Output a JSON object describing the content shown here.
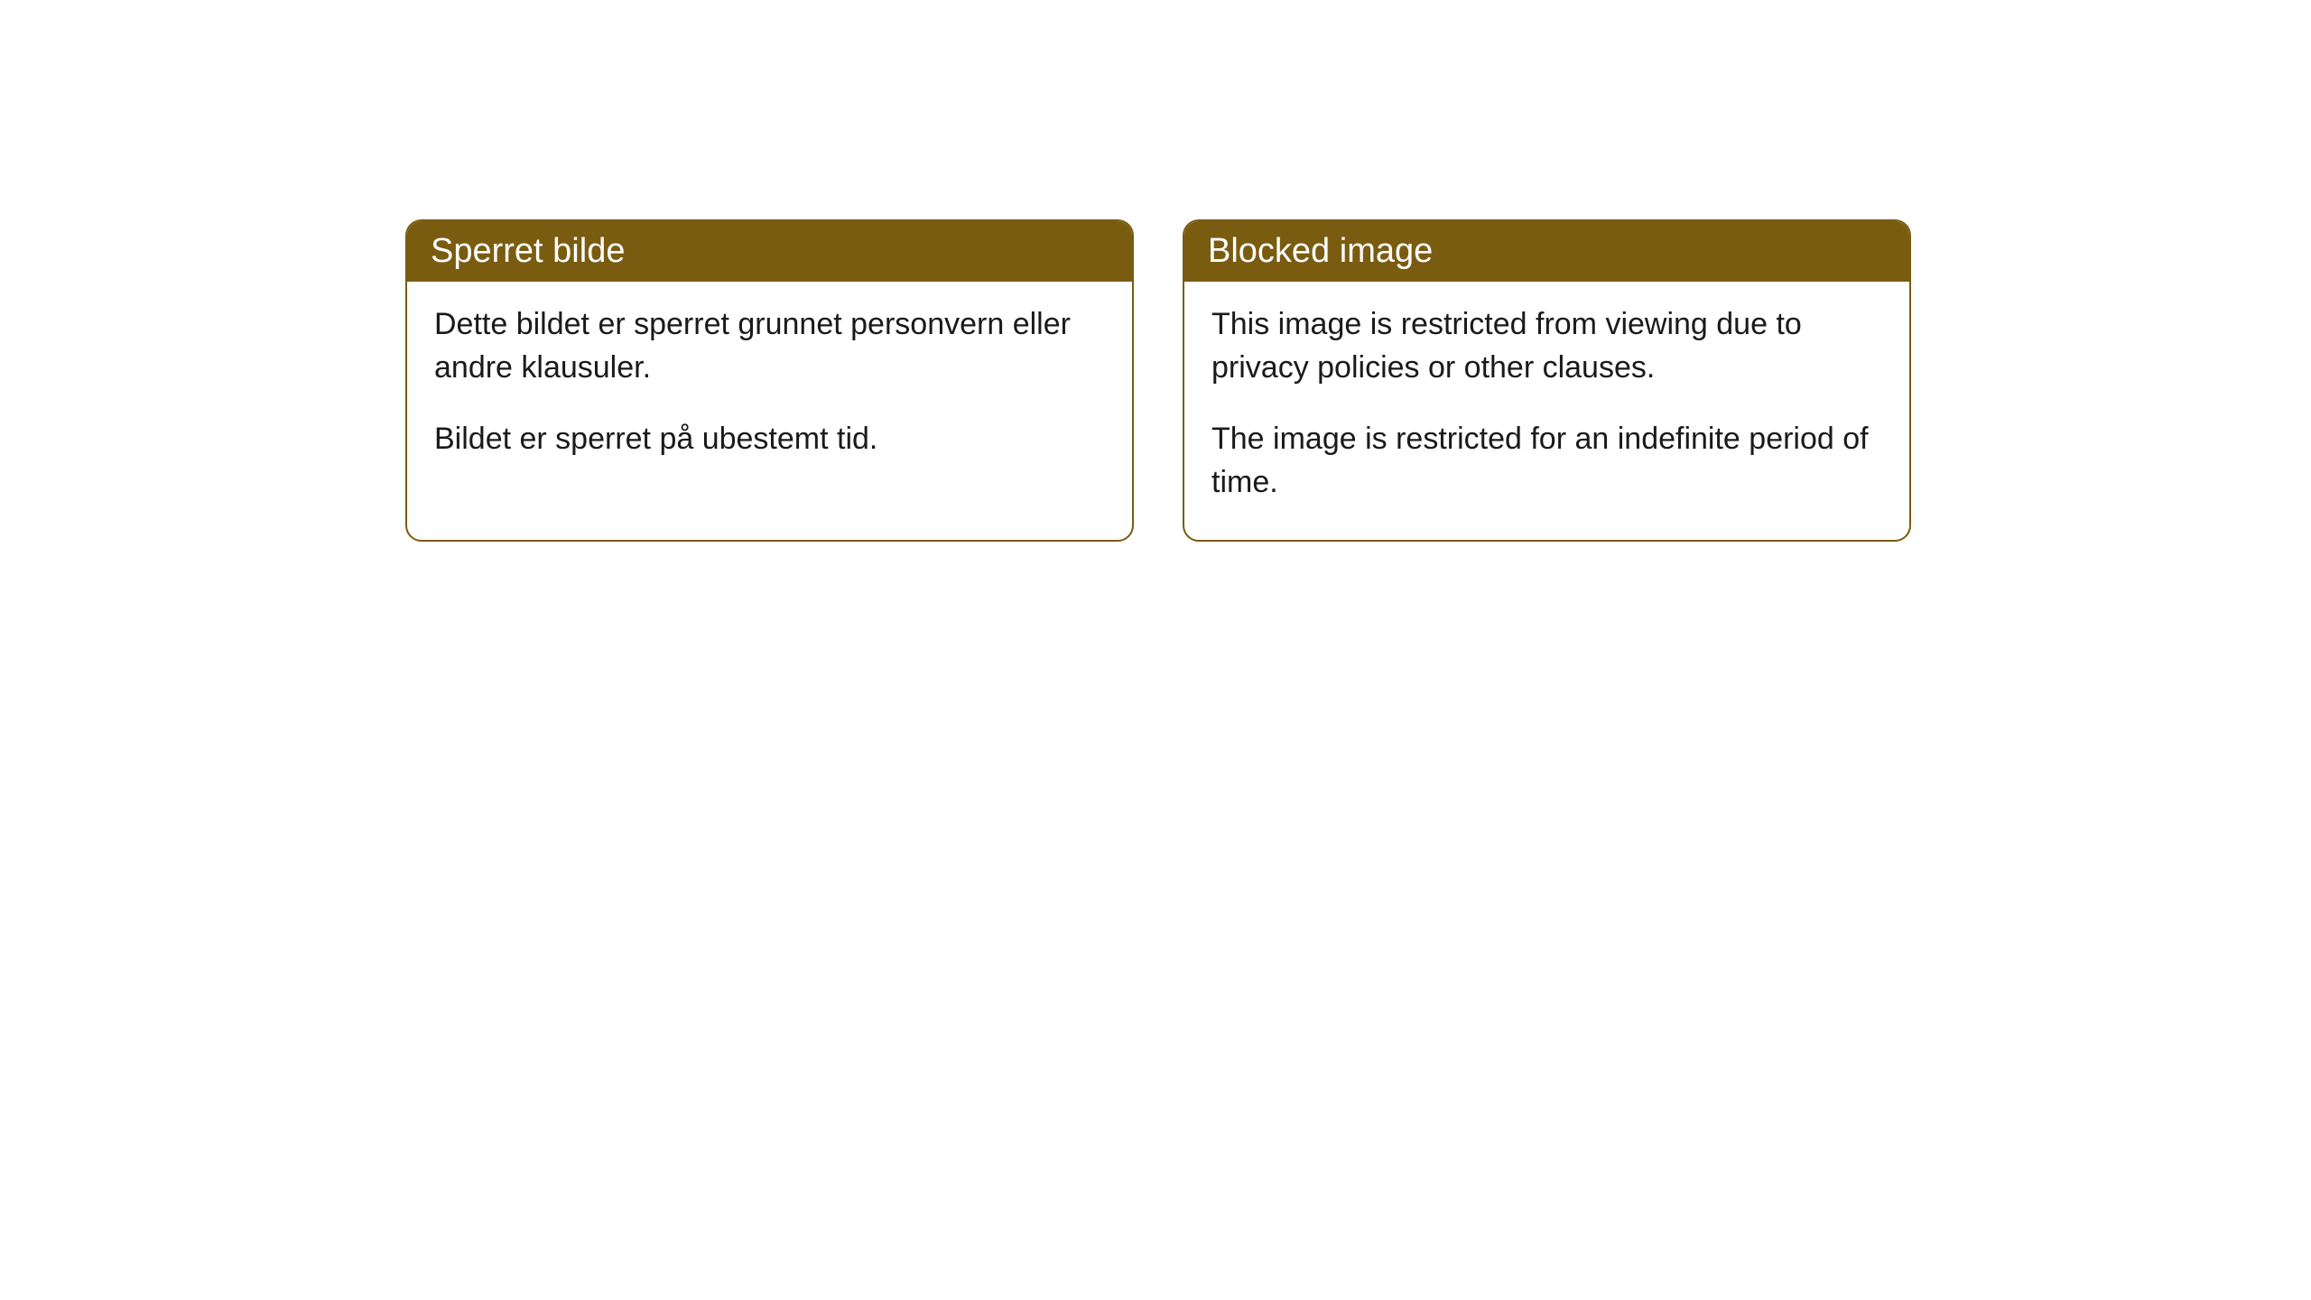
{
  "cards": {
    "norwegian": {
      "title": "Sperret bilde",
      "paragraph1": "Dette bildet er sperret grunnet personvern eller andre klausuler.",
      "paragraph2": "Bildet er sperret på ubestemt tid."
    },
    "english": {
      "title": "Blocked image",
      "paragraph1": "This image is restricted from viewing due to privacy policies or other clauses.",
      "paragraph2": "The image is restricted for an indefinite period of time."
    }
  },
  "style": {
    "header_bg_color": "#7a5c11",
    "header_text_color": "#ffffff",
    "border_color": "#7a5c11",
    "body_text_color": "#1a1a1a",
    "background_color": "#ffffff",
    "border_radius": 18,
    "title_fontsize": 38,
    "body_fontsize": 34
  }
}
